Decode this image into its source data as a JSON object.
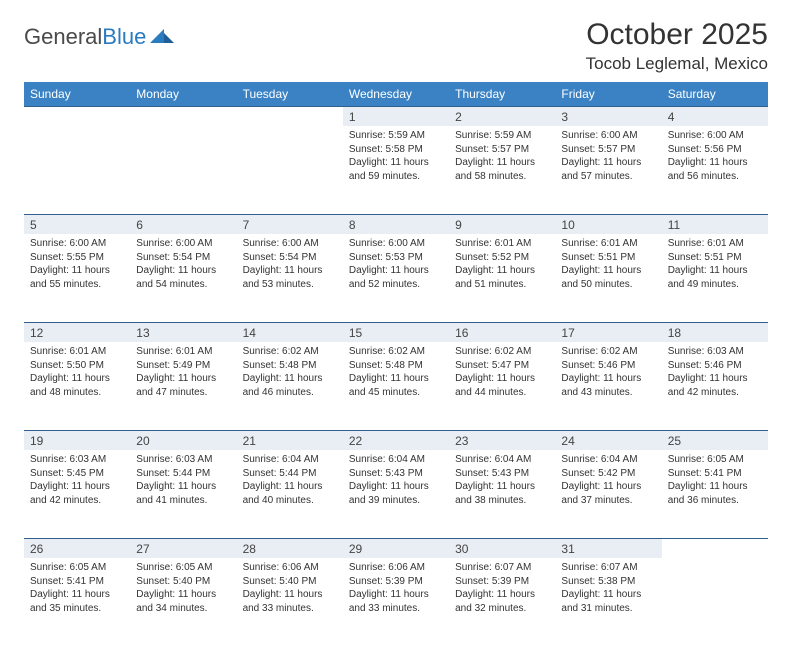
{
  "logo": {
    "text1": "General",
    "text2": "Blue"
  },
  "title": "October 2025",
  "location": "Tocob Leglemal, Mexico",
  "colors": {
    "header_bg": "#3a82c4",
    "daynum_bg": "#e8eef3",
    "daynum_border": "#2f5f8f",
    "text": "#333333",
    "logo_gray": "#4a4a4a",
    "logo_blue": "#2b7bbf"
  },
  "weekdays": [
    "Sunday",
    "Monday",
    "Tuesday",
    "Wednesday",
    "Thursday",
    "Friday",
    "Saturday"
  ],
  "weeks": [
    [
      null,
      null,
      null,
      {
        "d": "1",
        "sr": "5:59 AM",
        "ss": "5:58 PM",
        "dl": "11 hours and 59 minutes."
      },
      {
        "d": "2",
        "sr": "5:59 AM",
        "ss": "5:57 PM",
        "dl": "11 hours and 58 minutes."
      },
      {
        "d": "3",
        "sr": "6:00 AM",
        "ss": "5:57 PM",
        "dl": "11 hours and 57 minutes."
      },
      {
        "d": "4",
        "sr": "6:00 AM",
        "ss": "5:56 PM",
        "dl": "11 hours and 56 minutes."
      }
    ],
    [
      {
        "d": "5",
        "sr": "6:00 AM",
        "ss": "5:55 PM",
        "dl": "11 hours and 55 minutes."
      },
      {
        "d": "6",
        "sr": "6:00 AM",
        "ss": "5:54 PM",
        "dl": "11 hours and 54 minutes."
      },
      {
        "d": "7",
        "sr": "6:00 AM",
        "ss": "5:54 PM",
        "dl": "11 hours and 53 minutes."
      },
      {
        "d": "8",
        "sr": "6:00 AM",
        "ss": "5:53 PM",
        "dl": "11 hours and 52 minutes."
      },
      {
        "d": "9",
        "sr": "6:01 AM",
        "ss": "5:52 PM",
        "dl": "11 hours and 51 minutes."
      },
      {
        "d": "10",
        "sr": "6:01 AM",
        "ss": "5:51 PM",
        "dl": "11 hours and 50 minutes."
      },
      {
        "d": "11",
        "sr": "6:01 AM",
        "ss": "5:51 PM",
        "dl": "11 hours and 49 minutes."
      }
    ],
    [
      {
        "d": "12",
        "sr": "6:01 AM",
        "ss": "5:50 PM",
        "dl": "11 hours and 48 minutes."
      },
      {
        "d": "13",
        "sr": "6:01 AM",
        "ss": "5:49 PM",
        "dl": "11 hours and 47 minutes."
      },
      {
        "d": "14",
        "sr": "6:02 AM",
        "ss": "5:48 PM",
        "dl": "11 hours and 46 minutes."
      },
      {
        "d": "15",
        "sr": "6:02 AM",
        "ss": "5:48 PM",
        "dl": "11 hours and 45 minutes."
      },
      {
        "d": "16",
        "sr": "6:02 AM",
        "ss": "5:47 PM",
        "dl": "11 hours and 44 minutes."
      },
      {
        "d": "17",
        "sr": "6:02 AM",
        "ss": "5:46 PM",
        "dl": "11 hours and 43 minutes."
      },
      {
        "d": "18",
        "sr": "6:03 AM",
        "ss": "5:46 PM",
        "dl": "11 hours and 42 minutes."
      }
    ],
    [
      {
        "d": "19",
        "sr": "6:03 AM",
        "ss": "5:45 PM",
        "dl": "11 hours and 42 minutes."
      },
      {
        "d": "20",
        "sr": "6:03 AM",
        "ss": "5:44 PM",
        "dl": "11 hours and 41 minutes."
      },
      {
        "d": "21",
        "sr": "6:04 AM",
        "ss": "5:44 PM",
        "dl": "11 hours and 40 minutes."
      },
      {
        "d": "22",
        "sr": "6:04 AM",
        "ss": "5:43 PM",
        "dl": "11 hours and 39 minutes."
      },
      {
        "d": "23",
        "sr": "6:04 AM",
        "ss": "5:43 PM",
        "dl": "11 hours and 38 minutes."
      },
      {
        "d": "24",
        "sr": "6:04 AM",
        "ss": "5:42 PM",
        "dl": "11 hours and 37 minutes."
      },
      {
        "d": "25",
        "sr": "6:05 AM",
        "ss": "5:41 PM",
        "dl": "11 hours and 36 minutes."
      }
    ],
    [
      {
        "d": "26",
        "sr": "6:05 AM",
        "ss": "5:41 PM",
        "dl": "11 hours and 35 minutes."
      },
      {
        "d": "27",
        "sr": "6:05 AM",
        "ss": "5:40 PM",
        "dl": "11 hours and 34 minutes."
      },
      {
        "d": "28",
        "sr": "6:06 AM",
        "ss": "5:40 PM",
        "dl": "11 hours and 33 minutes."
      },
      {
        "d": "29",
        "sr": "6:06 AM",
        "ss": "5:39 PM",
        "dl": "11 hours and 33 minutes."
      },
      {
        "d": "30",
        "sr": "6:07 AM",
        "ss": "5:39 PM",
        "dl": "11 hours and 32 minutes."
      },
      {
        "d": "31",
        "sr": "6:07 AM",
        "ss": "5:38 PM",
        "dl": "11 hours and 31 minutes."
      },
      null
    ]
  ],
  "labels": {
    "sunrise": "Sunrise:",
    "sunset": "Sunset:",
    "daylight": "Daylight:"
  }
}
